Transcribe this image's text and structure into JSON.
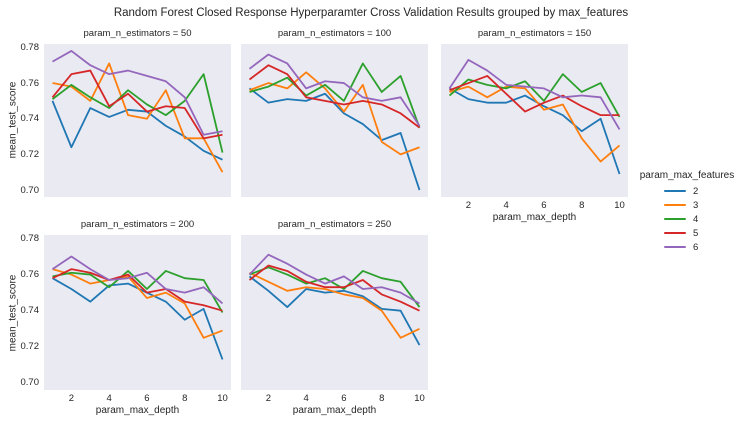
{
  "title": "Random Forest Closed Response Hyperparamter Cross Validation Results grouped by max_features",
  "chart_data": {
    "type": "line",
    "title": "Random Forest Closed Response Hyperparamter Cross Validation Results grouped by max_features",
    "facet_by": "param_n_estimators",
    "xlabel": "param_max_depth",
    "ylabel": "mean_test_score",
    "legend_title": "param_max_features",
    "legend_position": "right",
    "grid": false,
    "axes_background": "#eaeaf2",
    "x": [
      1,
      2,
      3,
      4,
      5,
      6,
      7,
      8,
      9,
      10
    ],
    "x_tick_labels": [
      "2",
      "4",
      "6",
      "8",
      "10"
    ],
    "x_ticks": [
      2,
      4,
      6,
      8,
      10
    ],
    "y_tick_labels": [
      "0.78",
      "0.76",
      "0.74",
      "0.72",
      "0.70"
    ],
    "y_ticks": [
      0.78,
      0.76,
      0.74,
      0.72,
      0.7
    ],
    "xlim": [
      0.55,
      10.45
    ],
    "ylim": [
      0.6961,
      0.7819
    ],
    "series": [
      {
        "name": "2",
        "color": "#1f77b4"
      },
      {
        "name": "3",
        "color": "#ff7f0e"
      },
      {
        "name": "4",
        "color": "#2ca02c"
      },
      {
        "name": "5",
        "color": "#d62728"
      },
      {
        "name": "6",
        "color": "#9467bd"
      }
    ],
    "facets": [
      {
        "title": "param_n_estimators = 50",
        "param_n_estimators": 50,
        "values": {
          "2": [
            0.75,
            0.724,
            0.746,
            0.741,
            0.745,
            0.744,
            0.736,
            0.73,
            0.722,
            0.717
          ],
          "3": [
            0.76,
            0.758,
            0.75,
            0.771,
            0.742,
            0.74,
            0.756,
            0.729,
            0.729,
            0.71
          ],
          "4": [
            0.751,
            0.759,
            0.752,
            0.746,
            0.756,
            0.748,
            0.742,
            0.75,
            0.765,
            0.721
          ],
          "5": [
            0.752,
            0.765,
            0.767,
            0.747,
            0.754,
            0.744,
            0.747,
            0.746,
            0.729,
            0.731
          ],
          "6": [
            0.772,
            0.778,
            0.77,
            0.765,
            0.767,
            0.764,
            0.761,
            0.752,
            0.731,
            0.733
          ]
        }
      },
      {
        "title": "param_n_estimators = 100",
        "param_n_estimators": 100,
        "values": {
          "2": [
            0.757,
            0.749,
            0.751,
            0.75,
            0.754,
            0.743,
            0.737,
            0.728,
            0.732,
            0.7
          ],
          "3": [
            0.756,
            0.76,
            0.757,
            0.766,
            0.757,
            0.744,
            0.759,
            0.727,
            0.72,
            0.724
          ],
          "4": [
            0.755,
            0.758,
            0.763,
            0.753,
            0.759,
            0.75,
            0.771,
            0.755,
            0.764,
            0.735
          ],
          "5": [
            0.762,
            0.77,
            0.765,
            0.752,
            0.75,
            0.748,
            0.75,
            0.748,
            0.743,
            0.735
          ],
          "6": [
            0.768,
            0.776,
            0.771,
            0.757,
            0.761,
            0.76,
            0.752,
            0.75,
            0.752,
            0.736
          ]
        }
      },
      {
        "title": "param_n_estimators = 150",
        "param_n_estimators": 150,
        "values": {
          "2": [
            0.757,
            0.751,
            0.749,
            0.749,
            0.753,
            0.747,
            0.742,
            0.733,
            0.74,
            0.709
          ],
          "3": [
            0.755,
            0.758,
            0.752,
            0.758,
            0.757,
            0.745,
            0.748,
            0.729,
            0.716,
            0.725
          ],
          "4": [
            0.753,
            0.762,
            0.759,
            0.757,
            0.761,
            0.75,
            0.765,
            0.755,
            0.76,
            0.741
          ],
          "5": [
            0.756,
            0.76,
            0.764,
            0.754,
            0.744,
            0.749,
            0.753,
            0.747,
            0.742,
            0.742
          ],
          "6": [
            0.757,
            0.773,
            0.767,
            0.759,
            0.758,
            0.757,
            0.752,
            0.753,
            0.752,
            0.734
          ]
        }
      },
      {
        "title": "param_n_estimators = 200",
        "param_n_estimators": 200,
        "values": {
          "2": [
            0.758,
            0.752,
            0.745,
            0.754,
            0.755,
            0.75,
            0.745,
            0.735,
            0.741,
            0.713
          ],
          "3": [
            0.763,
            0.76,
            0.755,
            0.757,
            0.759,
            0.747,
            0.75,
            0.744,
            0.725,
            0.729
          ],
          "4": [
            0.759,
            0.761,
            0.76,
            0.753,
            0.762,
            0.752,
            0.762,
            0.758,
            0.757,
            0.739
          ],
          "5": [
            0.758,
            0.763,
            0.761,
            0.757,
            0.76,
            0.75,
            0.752,
            0.745,
            0.743,
            0.74
          ],
          "6": [
            0.763,
            0.77,
            0.763,
            0.757,
            0.758,
            0.761,
            0.752,
            0.75,
            0.753,
            0.744
          ]
        }
      },
      {
        "title": "param_n_estimators = 250",
        "param_n_estimators": 250,
        "values": {
          "2": [
            0.759,
            0.751,
            0.742,
            0.752,
            0.75,
            0.751,
            0.748,
            0.741,
            0.74,
            0.721
          ],
          "3": [
            0.761,
            0.756,
            0.751,
            0.753,
            0.752,
            0.749,
            0.747,
            0.74,
            0.725,
            0.73
          ],
          "4": [
            0.76,
            0.764,
            0.76,
            0.755,
            0.758,
            0.752,
            0.762,
            0.758,
            0.756,
            0.742
          ],
          "5": [
            0.757,
            0.765,
            0.762,
            0.756,
            0.753,
            0.753,
            0.757,
            0.749,
            0.745,
            0.74
          ],
          "6": [
            0.76,
            0.771,
            0.766,
            0.76,
            0.755,
            0.759,
            0.752,
            0.753,
            0.75,
            0.744
          ]
        }
      }
    ]
  }
}
